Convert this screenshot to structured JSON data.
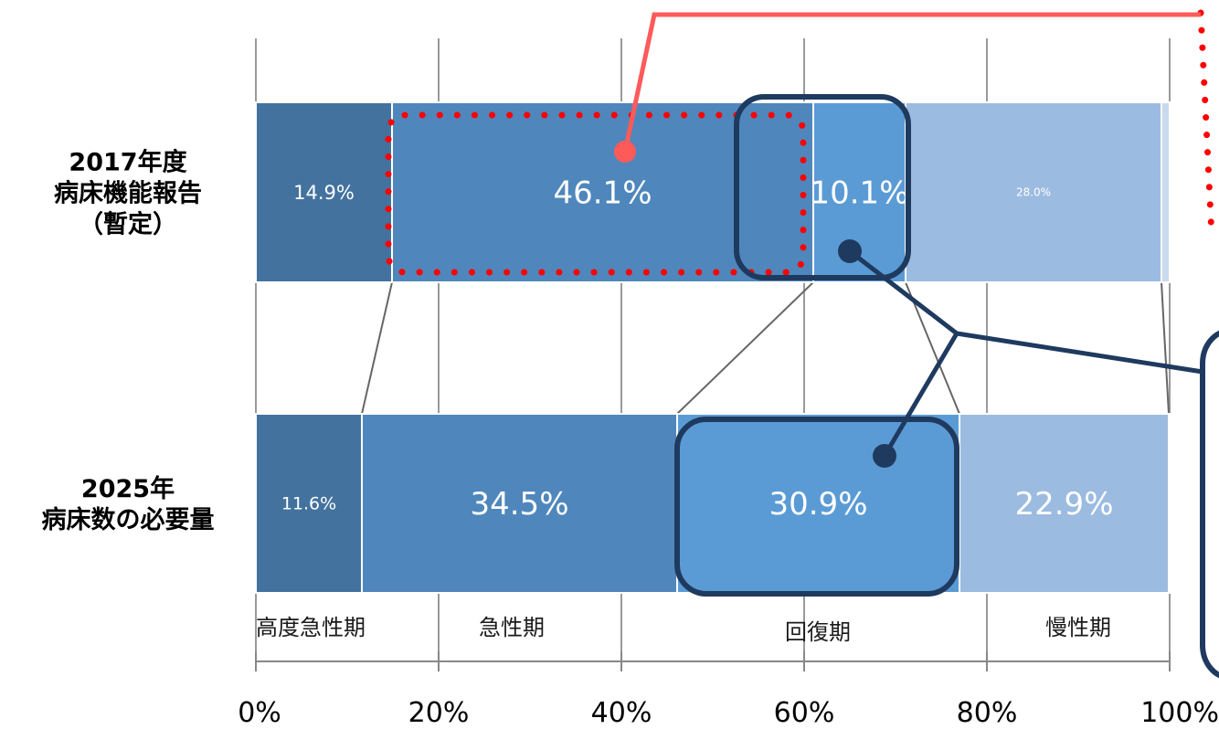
{
  "chart_data": {
    "type": "bar",
    "orientation": "horizontal",
    "stacked": true,
    "rows": [
      {
        "label_lines": [
          "2017年度",
          "病床機能報告",
          "（暫定）"
        ]
      },
      {
        "label_lines": [
          "2025年",
          "病床数の必要量"
        ]
      }
    ],
    "series": [
      {
        "name": "高度急性期",
        "values": [
          14.9,
          11.6
        ],
        "labels": [
          "14.9%",
          "11.6%"
        ],
        "color": "#44729e"
      },
      {
        "name": "急性期",
        "values": [
          46.1,
          34.5
        ],
        "labels": [
          "46.1%",
          "34.5%"
        ],
        "color": "#4f87bc"
      },
      {
        "name": "回復期",
        "values": [
          10.1,
          30.9
        ],
        "labels": [
          "10.1%",
          "30.9%"
        ],
        "color": "#5b9bd5"
      },
      {
        "name": "慢性期",
        "values": [
          28.0,
          22.9
        ],
        "labels": [
          "28.0%",
          "22.9%"
        ],
        "color": "#9cbbe0"
      }
    ],
    "remainder_color": "#c9d9ee",
    "x_ticks": [
      "0%",
      "20%",
      "40%",
      "60%",
      "80%",
      "100%"
    ],
    "xlim": [
      0,
      100
    ],
    "grid": true,
    "annotations": {
      "red_dotted_highlight_color": "#ff0000",
      "red_callout_color": "#ff5a5a",
      "navy_callout_color": "#1f3a5f"
    }
  }
}
